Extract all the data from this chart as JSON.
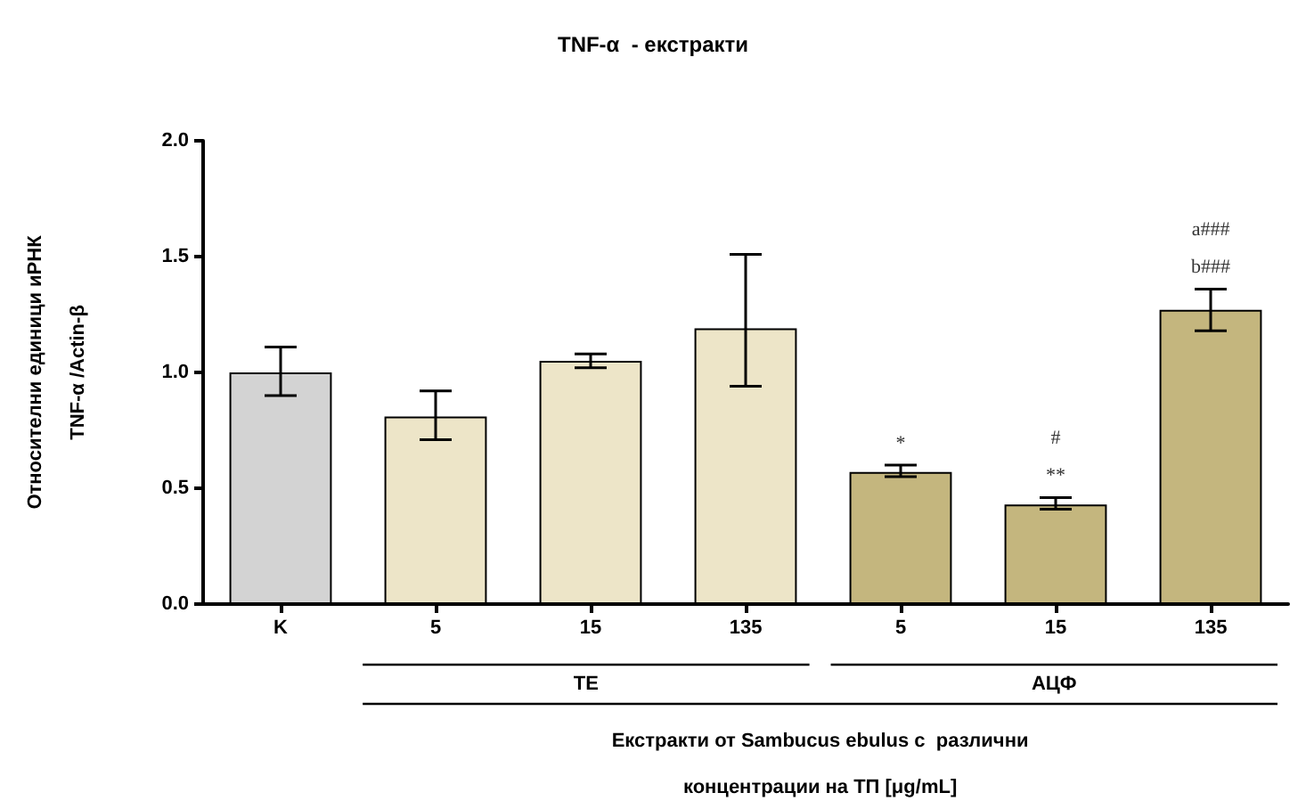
{
  "chart_data": {
    "type": "bar",
    "title": "TNF-α  - екстракти",
    "xlabel": "Екстракти от Sambucus ebulus с  различни\nконцентрации на ТП [μg/mL]",
    "ylabel": "Относителни единици иРНК\nTNF-α /Actin-β",
    "categories": [
      "K",
      "5",
      "15",
      "135",
      "5",
      "15",
      "135"
    ],
    "values": [
      1.0,
      0.81,
      1.05,
      1.19,
      0.57,
      0.43,
      1.27
    ],
    "colors": [
      "#d3d3d3",
      "#ede5c8",
      "#ede5c8",
      "#ede5c8",
      "#c4b67e",
      "#c4b67e",
      "#c4b67e"
    ],
    "errors": [
      [
        0.9,
        1.11
      ],
      [
        0.71,
        0.92
      ],
      [
        1.02,
        1.08
      ],
      [
        0.94,
        1.51
      ],
      [
        0.55,
        0.6
      ],
      [
        0.41,
        0.46
      ],
      [
        1.18,
        1.36
      ]
    ],
    "ylim": [
      0,
      2.0
    ],
    "yticks": [
      {
        "value": 0,
        "label": "0.0"
      },
      {
        "value": 0.5,
        "label": "0.5"
      },
      {
        "value": 1.0,
        "label": "1.0"
      },
      {
        "value": 1.5,
        "label": "1.5"
      },
      {
        "value": 2.0,
        "label": "2.0"
      }
    ],
    "grid": false,
    "annotations": [
      "TE",
      "АЦФ",
      "*",
      "**",
      "#",
      "b###",
      "a###"
    ]
  }
}
